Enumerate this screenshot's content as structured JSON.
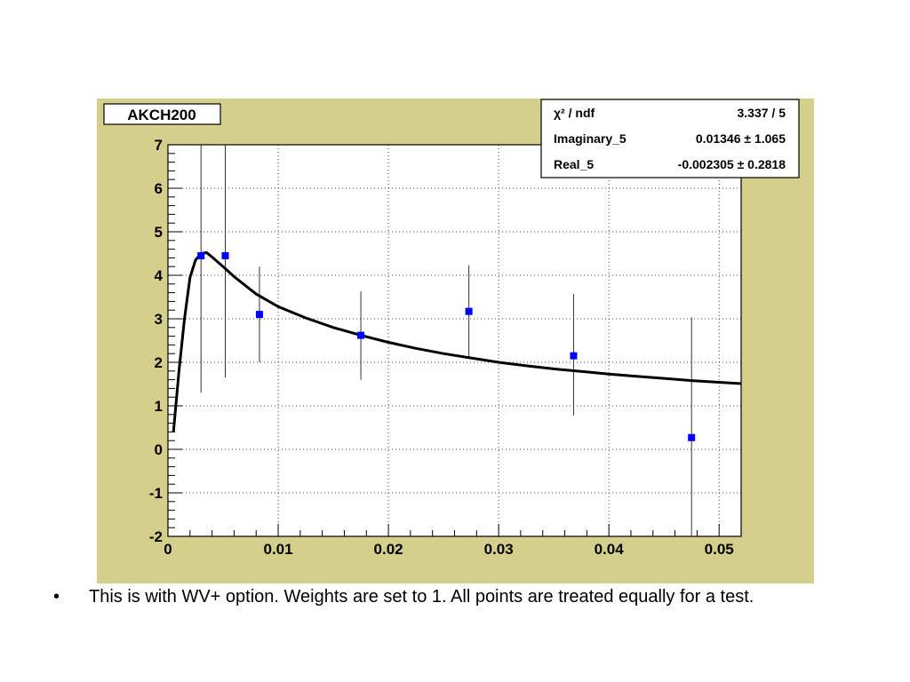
{
  "chart_data": {
    "type": "scatter",
    "title": "AKCH200",
    "xlabel": "",
    "ylabel": "",
    "xlim": [
      0,
      0.052
    ],
    "ylim": [
      -2,
      7
    ],
    "grid": true,
    "x_ticks": [
      0,
      0.01,
      0.02,
      0.03,
      0.04,
      0.05
    ],
    "x_tick_labels": [
      "0",
      "0.01",
      "0.02",
      "0.03",
      "0.04",
      "0.05"
    ],
    "y_ticks": [
      -2,
      -1,
      0,
      1,
      2,
      3,
      4,
      5,
      6,
      7
    ],
    "y_tick_labels": [
      "-2",
      "-1",
      "0",
      "1",
      "2",
      "3",
      "4",
      "5",
      "6",
      "7"
    ],
    "series": [
      {
        "type": "scatter-errorbar",
        "color": "#0000ff",
        "points": [
          {
            "x": 0.003,
            "y": 4.45,
            "ylo": 1.3,
            "yhi": 7.0
          },
          {
            "x": 0.0052,
            "y": 4.45,
            "ylo": 1.65,
            "yhi": 7.0
          },
          {
            "x": 0.0083,
            "y": 3.1,
            "ylo": 2.0,
            "yhi": 4.2
          },
          {
            "x": 0.0175,
            "y": 2.62,
            "ylo": 1.6,
            "yhi": 3.63
          },
          {
            "x": 0.0273,
            "y": 3.17,
            "ylo": 2.1,
            "yhi": 4.23
          },
          {
            "x": 0.0368,
            "y": 2.15,
            "ylo": 0.78,
            "yhi": 3.57
          },
          {
            "x": 0.0475,
            "y": 0.27,
            "ylo": -2.0,
            "yhi": 3.03
          }
        ]
      },
      {
        "type": "line",
        "color": "#000000",
        "points": [
          {
            "x": 0.0005,
            "y": 0.4
          },
          {
            "x": 0.001,
            "y": 1.8
          },
          {
            "x": 0.0015,
            "y": 3.0
          },
          {
            "x": 0.002,
            "y": 3.95
          },
          {
            "x": 0.0025,
            "y": 4.35
          },
          {
            "x": 0.003,
            "y": 4.5
          },
          {
            "x": 0.0035,
            "y": 4.52
          },
          {
            "x": 0.004,
            "y": 4.42
          },
          {
            "x": 0.005,
            "y": 4.2
          },
          {
            "x": 0.006,
            "y": 3.97
          },
          {
            "x": 0.008,
            "y": 3.57
          },
          {
            "x": 0.01,
            "y": 3.28
          },
          {
            "x": 0.0125,
            "y": 3.02
          },
          {
            "x": 0.015,
            "y": 2.8
          },
          {
            "x": 0.0175,
            "y": 2.62
          },
          {
            "x": 0.02,
            "y": 2.46
          },
          {
            "x": 0.0225,
            "y": 2.32
          },
          {
            "x": 0.025,
            "y": 2.2
          },
          {
            "x": 0.0275,
            "y": 2.1
          },
          {
            "x": 0.03,
            "y": 2.0
          },
          {
            "x": 0.0325,
            "y": 1.92
          },
          {
            "x": 0.035,
            "y": 1.85
          },
          {
            "x": 0.0375,
            "y": 1.79
          },
          {
            "x": 0.04,
            "y": 1.73
          },
          {
            "x": 0.0425,
            "y": 1.68
          },
          {
            "x": 0.045,
            "y": 1.63
          },
          {
            "x": 0.0475,
            "y": 1.58
          },
          {
            "x": 0.05,
            "y": 1.54
          },
          {
            "x": 0.052,
            "y": 1.51
          }
        ]
      }
    ],
    "stats_box": {
      "placement": "top-right",
      "rows": [
        {
          "label": "χ² / ndf",
          "value": "3.337 / 5"
        },
        {
          "label": "Imaginary_5",
          "value": "0.01346 ± 1.065"
        },
        {
          "label": "Real_5",
          "value": "-0.002305 ± 0.2818"
        }
      ]
    }
  },
  "colors": {
    "panel_background": "#d5cf8c",
    "frame_background": "#ffffff",
    "marker": "#0000ff",
    "fit_line": "#000000"
  },
  "bullet": {
    "symbol": "•",
    "text": "This is with WV+ option.  Weights are set to 1.  All points are treated equally for a test."
  }
}
